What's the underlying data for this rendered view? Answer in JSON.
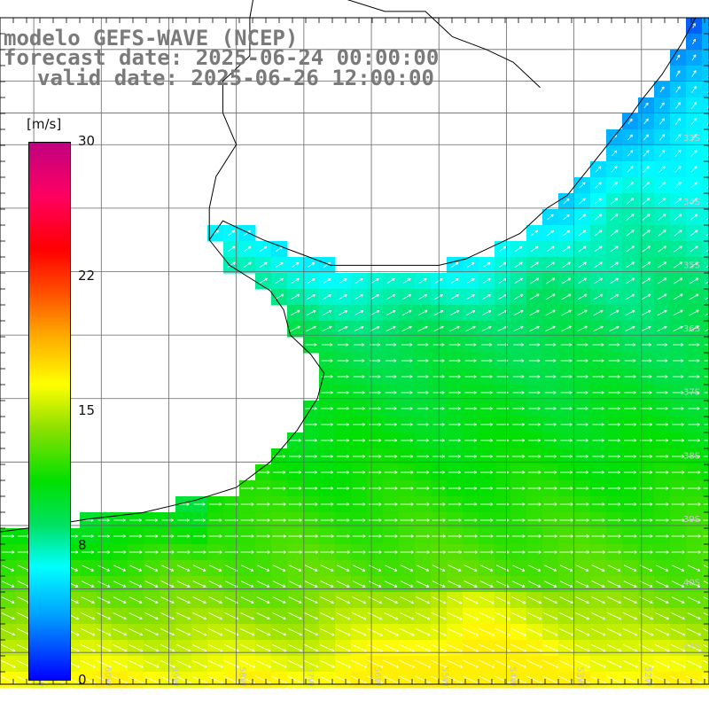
{
  "title": {
    "model": "modelo GEFS-WAVE (NCEP)",
    "forecast": "forecast date: 2025-06-24 00:00:00",
    "valid": "valid date: 2025-06-26 12:00:00"
  },
  "map": {
    "lon_range": [
      -61.5,
      -51
    ],
    "lat_range": [
      -41.5,
      -31
    ],
    "lon_labels": [
      {
        "lon": -61,
        "text": "61W"
      },
      {
        "lon": -60,
        "text": "60W"
      },
      {
        "lon": -59,
        "text": "59W"
      },
      {
        "lon": -58,
        "text": "58W"
      },
      {
        "lon": -57,
        "text": "57W"
      },
      {
        "lon": -56,
        "text": "56W"
      },
      {
        "lon": -55,
        "text": "55W"
      },
      {
        "lon": -54,
        "text": "54W"
      },
      {
        "lon": -53,
        "text": "53W"
      },
      {
        "lon": -52,
        "text": "52W"
      },
      {
        "lon": -51,
        "text": "51W"
      }
    ],
    "lat_labels": [
      {
        "lat": -33,
        "text": "33S"
      },
      {
        "lat": -34,
        "text": "34S"
      },
      {
        "lat": -35,
        "text": "35S"
      },
      {
        "lat": -36,
        "text": "36S"
      },
      {
        "lat": -37,
        "text": "37S"
      },
      {
        "lat": -38,
        "text": "38S"
      },
      {
        "lat": -39,
        "text": "39S"
      },
      {
        "lat": -40,
        "text": "40S"
      },
      {
        "lat": -41,
        "text": "41S"
      }
    ],
    "coastline": [
      [
        -51.2,
        -31.0
      ],
      [
        -51.4,
        -31.4
      ],
      [
        -51.7,
        -31.9
      ],
      [
        -52.0,
        -32.3
      ],
      [
        -52.2,
        -32.6
      ],
      [
        -52.5,
        -33.0
      ],
      [
        -52.8,
        -33.4
      ],
      [
        -53.1,
        -33.8
      ],
      [
        -53.4,
        -34.0
      ],
      [
        -53.8,
        -34.4
      ],
      [
        -54.2,
        -34.6
      ],
      [
        -54.6,
        -34.8
      ],
      [
        -55.0,
        -34.9
      ],
      [
        -55.5,
        -34.9
      ],
      [
        -56.0,
        -34.9
      ],
      [
        -56.6,
        -34.9
      ],
      [
        -57.1,
        -34.7
      ],
      [
        -57.6,
        -34.5
      ],
      [
        -58.2,
        -34.2
      ],
      [
        -58.4,
        -34.5
      ],
      [
        -58.1,
        -34.9
      ],
      [
        -57.8,
        -35.1
      ],
      [
        -57.5,
        -35.3
      ],
      [
        -57.3,
        -35.6
      ],
      [
        -57.2,
        -36.0
      ],
      [
        -56.9,
        -36.3
      ],
      [
        -56.7,
        -36.6
      ],
      [
        -56.8,
        -37.0
      ],
      [
        -57.1,
        -37.5
      ],
      [
        -57.5,
        -38.0
      ],
      [
        -58.0,
        -38.4
      ],
      [
        -58.6,
        -38.6
      ],
      [
        -59.4,
        -38.8
      ],
      [
        -60.2,
        -38.9
      ],
      [
        -60.8,
        -39.0
      ],
      [
        -61.5,
        -39.1
      ]
    ],
    "border": [
      [
        -53.5,
        -32.1
      ],
      [
        -53.9,
        -31.7
      ],
      [
        -54.3,
        -31.5
      ],
      [
        -54.8,
        -31.3
      ],
      [
        -55.2,
        -30.9
      ],
      [
        -55.8,
        -30.9
      ],
      [
        -56.4,
        -30.7
      ],
      [
        -57.0,
        -30.3
      ],
      [
        -57.5,
        -30.1
      ],
      [
        -57.7,
        -30.4
      ],
      [
        -57.8,
        -31.0
      ],
      [
        -57.8,
        -31.6
      ],
      [
        -58.2,
        -32.0
      ],
      [
        -58.2,
        -32.5
      ],
      [
        -58.0,
        -33.0
      ],
      [
        -58.3,
        -33.5
      ],
      [
        -58.4,
        -34.0
      ],
      [
        -58.4,
        -34.5
      ]
    ]
  },
  "colorbar": {
    "unit": "[m/s]",
    "min": 0,
    "max": 30,
    "ticks": [
      "30",
      "22",
      "15",
      "8",
      "0"
    ]
  }
}
